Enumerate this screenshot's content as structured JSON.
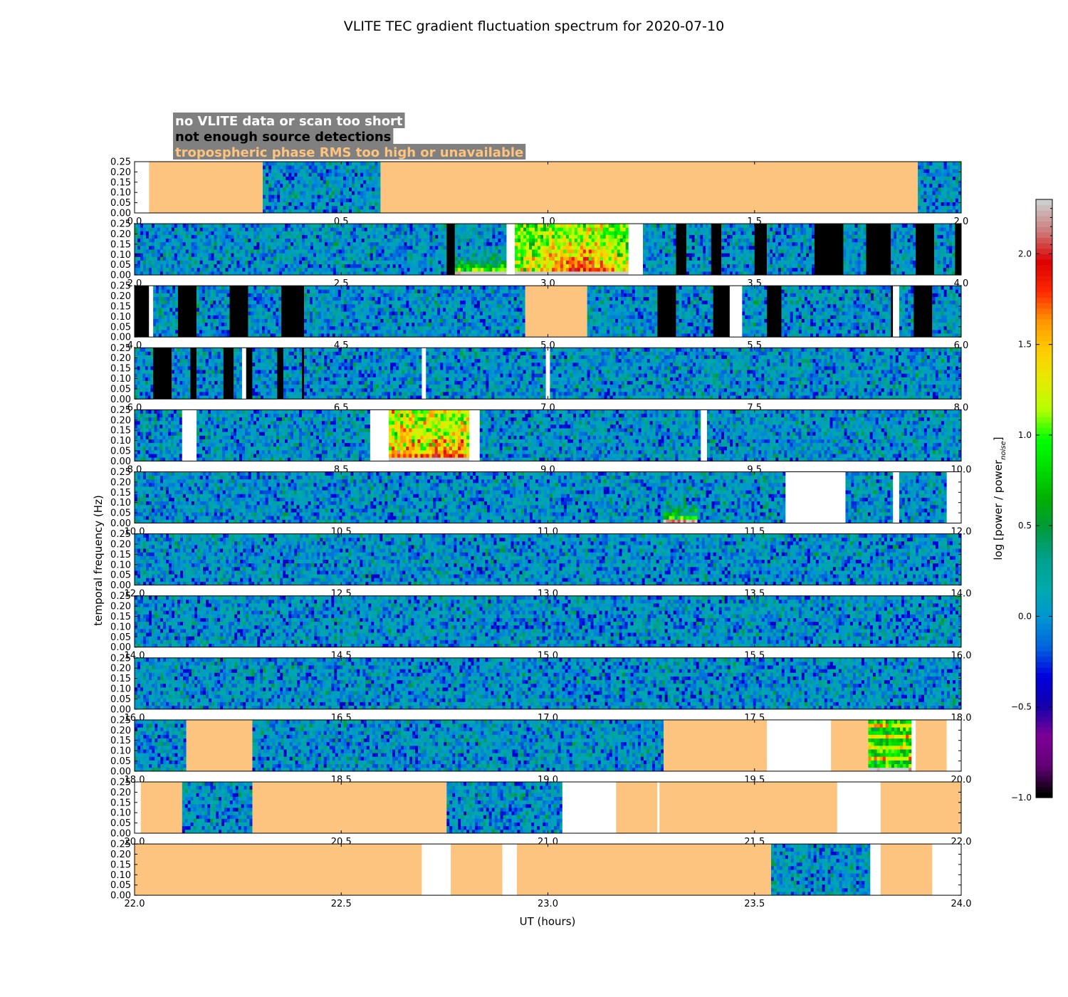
{
  "chart_data": {
    "type": "heatmap",
    "title": "VLITE TEC gradient fluctuation spectrum for 2020-07-10",
    "xlabel": "UT (hours)",
    "ylabel": "temporal frequency (Hz)",
    "colorbar": {
      "label": "log [power / power_noise]",
      "label_main": "log [power / power",
      "label_sub": "noise",
      "label_close": "]",
      "range": [
        -1.0,
        2.3
      ],
      "ticks": [
        "−1.0",
        "−0.5",
        "0.0",
        "0.5",
        "1.0",
        "1.5",
        "2.0"
      ],
      "tick_values": [
        -1.0,
        -0.5,
        0.0,
        0.5,
        1.0,
        1.5,
        2.0
      ]
    },
    "yticks": [
      "0.00",
      "0.05",
      "0.10",
      "0.15",
      "0.20",
      "0.25"
    ],
    "ylim": [
      0,
      0.25
    ],
    "legend": {
      "placement": "top-left",
      "items": [
        {
          "label": "no VLITE data or scan too short",
          "text_color": "#ffffff",
          "box_color": "#808080"
        },
        {
          "label": "not enough source detections",
          "text_color": "#000000",
          "box_color": "#808080"
        },
        {
          "label": "tropospheric phase RMS too high or unavailable",
          "text_color": "#fdc47f",
          "box_color": "#808080"
        }
      ]
    },
    "colors": {
      "no_data": "#ffffff",
      "low_detections": "#000000",
      "tropo": "#fdc47f"
    },
    "panels": [
      {
        "xlim": [
          0,
          2
        ],
        "xticks": [
          "0.0",
          "0.5",
          "1.0",
          "1.5",
          "2.0"
        ],
        "segments": [
          [
            "white",
            0,
            0.035
          ],
          [
            "tropo",
            0.035,
            0.31
          ],
          [
            "data",
            0.31,
            0.595
          ],
          [
            "tropo",
            0.595,
            1.895
          ],
          [
            "data",
            1.895,
            2.0
          ]
        ],
        "events": []
      },
      {
        "xlim": [
          2,
          4
        ],
        "xticks": [
          "2.0",
          "2.5",
          "3.0",
          "3.5",
          "4.0"
        ],
        "segments": [
          [
            "data",
            2.0,
            2.755
          ],
          [
            "black",
            2.755,
            2.775
          ],
          [
            "data",
            2.775,
            2.9
          ],
          [
            "white",
            2.9,
            2.92
          ],
          [
            "data",
            2.92,
            3.195
          ],
          [
            "white",
            3.195,
            3.23
          ],
          [
            "data",
            3.23,
            3.31
          ],
          [
            "black",
            3.31,
            3.335
          ],
          [
            "data",
            3.335,
            3.395
          ],
          [
            "black",
            3.395,
            3.42
          ],
          [
            "data",
            3.42,
            3.5
          ],
          [
            "black",
            3.5,
            3.53
          ],
          [
            "data",
            3.53,
            3.645
          ],
          [
            "black",
            3.645,
            3.715
          ],
          [
            "data",
            3.715,
            3.77
          ],
          [
            "black",
            3.77,
            3.83
          ],
          [
            "data",
            3.83,
            3.89
          ],
          [
            "black",
            3.89,
            3.935
          ],
          [
            "data",
            3.935,
            3.985
          ],
          [
            "black",
            3.985,
            4.0
          ]
        ],
        "events": [
          [
            2.775,
            2.9,
            0.6,
            "low"
          ],
          [
            2.92,
            3.195,
            1.0,
            "mid"
          ]
        ]
      },
      {
        "xlim": [
          4,
          6
        ],
        "xticks": [
          "4.0",
          "4.5",
          "5.0",
          "5.5",
          "6.0"
        ],
        "segments": [
          [
            "black",
            4.0,
            4.035
          ],
          [
            "white",
            4.035,
            4.045
          ],
          [
            "data",
            4.045,
            4.105
          ],
          [
            "black",
            4.105,
            4.15
          ],
          [
            "data",
            4.15,
            4.23
          ],
          [
            "black",
            4.23,
            4.275
          ],
          [
            "data",
            4.275,
            4.355
          ],
          [
            "black",
            4.355,
            4.41
          ],
          [
            "data",
            4.41,
            4.945
          ],
          [
            "tropo",
            4.945,
            5.095
          ],
          [
            "data",
            5.095,
            5.265
          ],
          [
            "black",
            5.265,
            5.31
          ],
          [
            "data",
            5.31,
            5.4
          ],
          [
            "black",
            5.4,
            5.44
          ],
          [
            "white",
            5.44,
            5.47
          ],
          [
            "data",
            5.47,
            5.53
          ],
          [
            "black",
            5.53,
            5.565
          ],
          [
            "data",
            5.565,
            5.83
          ],
          [
            "black",
            5.83,
            5.835
          ],
          [
            "white",
            5.835,
            5.85
          ],
          [
            "data",
            5.85,
            5.885
          ],
          [
            "black",
            5.885,
            5.93
          ],
          [
            "data",
            5.93,
            6.0
          ]
        ],
        "events": []
      },
      {
        "xlim": [
          6,
          8
        ],
        "xticks": [
          "6.0",
          "6.5",
          "7.0",
          "7.5",
          "8.0"
        ],
        "segments": [
          [
            "data",
            6.0,
            6.045
          ],
          [
            "black",
            6.045,
            6.09
          ],
          [
            "data",
            6.09,
            6.135
          ],
          [
            "black",
            6.135,
            6.15
          ],
          [
            "data",
            6.15,
            6.215
          ],
          [
            "black",
            6.215,
            6.24
          ],
          [
            "data",
            6.24,
            6.26
          ],
          [
            "white",
            6.26,
            6.27
          ],
          [
            "black",
            6.27,
            6.285
          ],
          [
            "data",
            6.285,
            6.345
          ],
          [
            "black",
            6.345,
            6.36
          ],
          [
            "data",
            6.36,
            6.405
          ],
          [
            "black",
            6.405,
            6.41
          ],
          [
            "data",
            6.41,
            6.695
          ],
          [
            "white",
            6.695,
            6.705
          ],
          [
            "data",
            6.705,
            6.995
          ],
          [
            "white",
            6.995,
            7.005
          ],
          [
            "data",
            7.005,
            8.0
          ]
        ],
        "events": []
      },
      {
        "xlim": [
          8,
          10
        ],
        "xticks": [
          "8.0",
          "8.5",
          "9.0",
          "9.5",
          "10.0"
        ],
        "segments": [
          [
            "data",
            8.0,
            8.115
          ],
          [
            "white",
            8.115,
            8.15
          ],
          [
            "data",
            8.15,
            8.57
          ],
          [
            "white",
            8.57,
            8.615
          ],
          [
            "data",
            8.615,
            8.81
          ],
          [
            "white",
            8.81,
            8.835
          ],
          [
            "data",
            8.835,
            9.37
          ],
          [
            "white",
            9.37,
            9.385
          ],
          [
            "data",
            9.385,
            10.0
          ]
        ],
        "events": [
          [
            8.615,
            8.81,
            1.0,
            "hot"
          ]
        ]
      },
      {
        "xlim": [
          10,
          12
        ],
        "xticks": [
          "10.0",
          "10.5",
          "11.0",
          "11.5",
          "12.0"
        ],
        "segments": [
          [
            "data",
            10.0,
            11.575
          ],
          [
            "white",
            11.575,
            11.72
          ],
          [
            "data",
            11.72,
            11.835
          ],
          [
            "white",
            11.835,
            11.85
          ],
          [
            "data",
            11.85,
            11.965
          ],
          [
            "white",
            11.965,
            12.0
          ]
        ],
        "events": [
          [
            11.28,
            11.36,
            0.5,
            "low"
          ]
        ]
      },
      {
        "xlim": [
          12,
          14
        ],
        "xticks": [
          "12.0",
          "12.5",
          "13.0",
          "13.5",
          "14.0"
        ],
        "segments": [
          [
            "data",
            12.0,
            14.0
          ]
        ],
        "events": []
      },
      {
        "xlim": [
          14,
          16
        ],
        "xticks": [
          "14.0",
          "14.5",
          "15.0",
          "15.5",
          "16.0"
        ],
        "segments": [
          [
            "data",
            14.0,
            16.0
          ]
        ],
        "events": []
      },
      {
        "xlim": [
          16,
          18
        ],
        "xticks": [
          "16.0",
          "16.5",
          "17.0",
          "17.5",
          "18.0"
        ],
        "segments": [
          [
            "data",
            16.0,
            18.0
          ]
        ],
        "events": []
      },
      {
        "xlim": [
          18,
          20
        ],
        "xticks": [
          "18.0",
          "18.5",
          "19.0",
          "19.5",
          "20.0"
        ],
        "segments": [
          [
            "data",
            18.0,
            18.125
          ],
          [
            "tropo",
            18.125,
            18.285
          ],
          [
            "data",
            18.285,
            19.28
          ],
          [
            "tropo",
            19.28,
            19.53
          ],
          [
            "white",
            19.53,
            19.685
          ],
          [
            "tropo",
            19.685,
            19.775
          ],
          [
            "data",
            19.775,
            19.88
          ],
          [
            "white",
            19.88,
            19.89
          ],
          [
            "tropo",
            19.89,
            19.965
          ],
          [
            "white",
            19.965,
            20.0
          ]
        ],
        "events": [
          [
            19.775,
            19.88,
            1.0,
            "bands"
          ]
        ]
      },
      {
        "xlim": [
          20,
          22
        ],
        "xticks": [
          "20.0",
          "20.5",
          "21.0",
          "21.5",
          "22.0"
        ],
        "segments": [
          [
            "white",
            20.0,
            20.015
          ],
          [
            "tropo",
            20.015,
            20.115
          ],
          [
            "data",
            20.115,
            20.285
          ],
          [
            "tropo",
            20.285,
            20.755
          ],
          [
            "data",
            20.755,
            21.035
          ],
          [
            "white",
            21.035,
            21.165
          ],
          [
            "tropo",
            21.165,
            21.265
          ],
          [
            "white",
            21.265,
            21.27
          ],
          [
            "tropo",
            21.27,
            21.7
          ],
          [
            "white",
            21.7,
            21.805
          ],
          [
            "tropo",
            21.805,
            22.0
          ]
        ],
        "events": []
      },
      {
        "xlim": [
          22,
          24
        ],
        "xticks": [
          "22.0",
          "22.5",
          "23.0",
          "23.5",
          "24.0"
        ],
        "segments": [
          [
            "tropo",
            22.0,
            22.695
          ],
          [
            "white",
            22.695,
            22.765
          ],
          [
            "tropo",
            22.765,
            22.89
          ],
          [
            "white",
            22.89,
            22.925
          ],
          [
            "tropo",
            22.925,
            23.54
          ],
          [
            "data",
            23.54,
            23.78
          ],
          [
            "white",
            23.78,
            23.805
          ],
          [
            "tropo",
            23.805,
            23.93
          ],
          [
            "white",
            23.93,
            24.0
          ]
        ],
        "events": []
      }
    ]
  }
}
